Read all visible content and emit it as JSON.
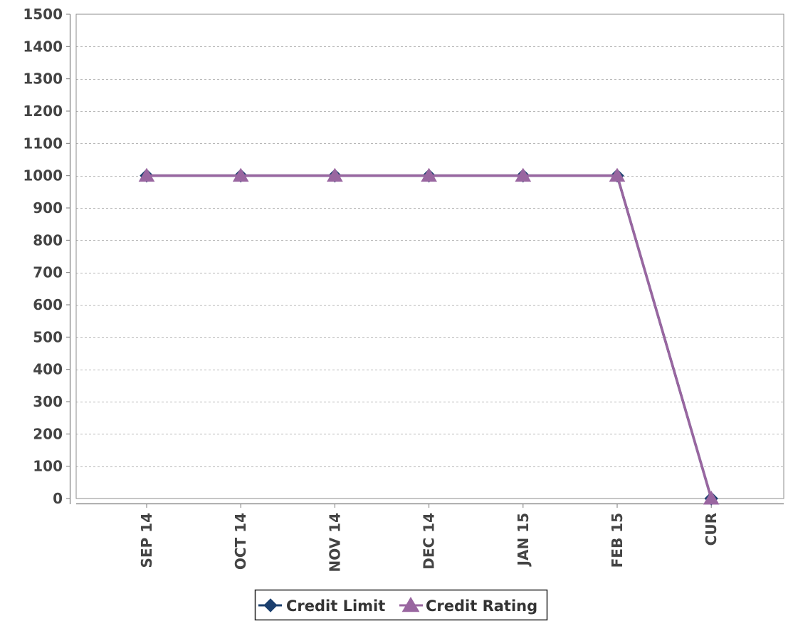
{
  "chart_data": {
    "type": "line",
    "title": "",
    "xlabel": "",
    "ylabel": "",
    "categories": [
      "SEP 14",
      "OCT 14",
      "NOV 14",
      "DEC 14",
      "JAN 15",
      "FEB 15",
      "CUR"
    ],
    "series": [
      {
        "name": "Credit Limit",
        "marker": "diamond",
        "color": "#1b3f6e",
        "values": [
          1000,
          1000,
          1000,
          1000,
          1000,
          1000,
          0
        ]
      },
      {
        "name": "Credit Rating",
        "marker": "triangle",
        "color": "#9966a0",
        "values": [
          1000,
          1000,
          1000,
          1000,
          1000,
          1000,
          0
        ]
      }
    ],
    "ylim": [
      0,
      1500
    ],
    "yticks": [
      0,
      100,
      200,
      300,
      400,
      500,
      600,
      700,
      800,
      900,
      1000,
      1100,
      1200,
      1300,
      1400,
      1500
    ],
    "grid": true,
    "legend_position": "bottom"
  }
}
